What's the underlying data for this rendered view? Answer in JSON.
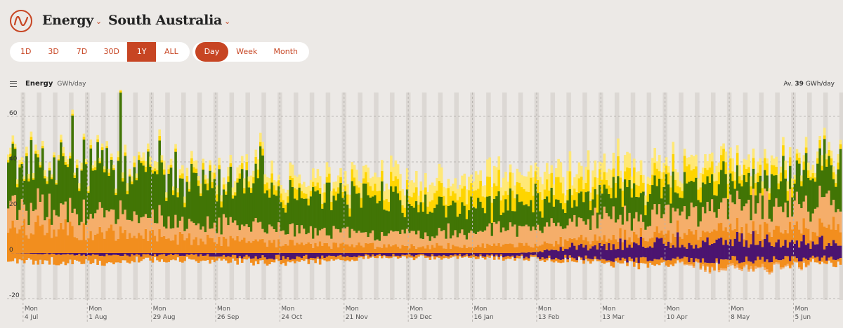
{
  "header": {
    "metric": "Energy",
    "region": "South Australia"
  },
  "ranges": [
    "1D",
    "3D",
    "7D",
    "30D",
    "1Y",
    "ALL"
  ],
  "active_range": "1Y",
  "intervals": [
    "Day",
    "Week",
    "Month"
  ],
  "active_interval": "Day",
  "chart_header": {
    "name": "Energy",
    "unit": "GWh/day",
    "avg_prefix": "Av.",
    "avg_value": "39",
    "avg_unit": "GWh/day"
  },
  "icons": {
    "logo": "opennem-logo-icon",
    "menu": "hamburger-menu-icon",
    "chevron": "chevron-down-icon"
  },
  "colors": {
    "accent": "#c74523",
    "battery": "#4b1470",
    "gas_ccgt": "#f28e1e",
    "gas_ocgt": "#f5ae6a",
    "wind": "#417505",
    "solar_utility": "#fed500",
    "solar_rooftop": "#ffe876"
  },
  "chart_data": {
    "type": "area",
    "ylim": [
      -20,
      65
    ],
    "yticks": [
      -20,
      0,
      20,
      40,
      60
    ],
    "ytick_labels": [
      "-20",
      "0",
      "20",
      "40",
      "60"
    ],
    "xticks": [
      {
        "date": "2021-07-04",
        "day": "Mon",
        "label": "4 Jul"
      },
      {
        "date": "2021-08-01",
        "day": "Mon",
        "label": "1 Aug"
      },
      {
        "date": "2021-08-29",
        "day": "Mon",
        "label": "29 Aug"
      },
      {
        "date": "2021-09-26",
        "day": "Mon",
        "label": "26 Sep"
      },
      {
        "date": "2021-10-24",
        "day": "Mon",
        "label": "24 Oct"
      },
      {
        "date": "2021-11-21",
        "day": "Mon",
        "label": "21 Nov"
      },
      {
        "date": "2021-12-19",
        "day": "Mon",
        "label": "19 Dec"
      },
      {
        "date": "2022-01-16",
        "day": "Mon",
        "label": "16 Jan"
      },
      {
        "date": "2022-02-13",
        "day": "Mon",
        "label": "13 Feb"
      },
      {
        "date": "2022-03-13",
        "day": "Mon",
        "label": "13 Mar"
      },
      {
        "date": "2022-04-10",
        "day": "Mon",
        "label": "10 Apr"
      },
      {
        "date": "2022-05-08",
        "day": "Mon",
        "label": "8 May"
      },
      {
        "date": "2022-06-05",
        "day": "Mon",
        "label": "5 Jun"
      }
    ],
    "x_start": "2021-06-27",
    "x_end": "2022-06-25",
    "series": [
      {
        "key": "battery",
        "color": "#4b1470",
        "values": [
          -3,
          -4,
          -3,
          -5,
          -3,
          -2,
          2,
          5,
          6,
          4
        ],
        "negative": [
          0,
          -1,
          -1,
          -2,
          -1,
          -1,
          -2,
          -3,
          -3,
          -2
        ]
      },
      {
        "key": "gas_ccgt",
        "color": "#f28e1e",
        "values": [
          12,
          9,
          6,
          4,
          3,
          3,
          3,
          4,
          5,
          7
        ],
        "negative": [
          -3,
          -3,
          -2,
          -2,
          -1,
          -1,
          -1,
          -2,
          -3,
          -2
        ]
      },
      {
        "key": "gas_ocgt",
        "color": "#f5ae6a",
        "values": [
          10,
          8,
          7,
          6,
          5,
          6,
          8,
          9,
          10,
          10
        ],
        "negative": [
          0,
          0,
          0,
          0,
          0,
          0,
          0,
          0,
          -1,
          0
        ]
      },
      {
        "key": "wind",
        "color": "#417505",
        "values": [
          16,
          20,
          19,
          17,
          14,
          10,
          10,
          11,
          10,
          14
        ]
      },
      {
        "key": "solar_utility",
        "color": "#fed500",
        "values": [
          1,
          1,
          2,
          3,
          4,
          6,
          7,
          6,
          4,
          2
        ]
      },
      {
        "key": "solar_rooftop",
        "color": "#ffe876",
        "values": [
          2,
          2,
          3,
          4,
          5,
          6,
          6,
          5,
          4,
          3
        ]
      }
    ]
  }
}
